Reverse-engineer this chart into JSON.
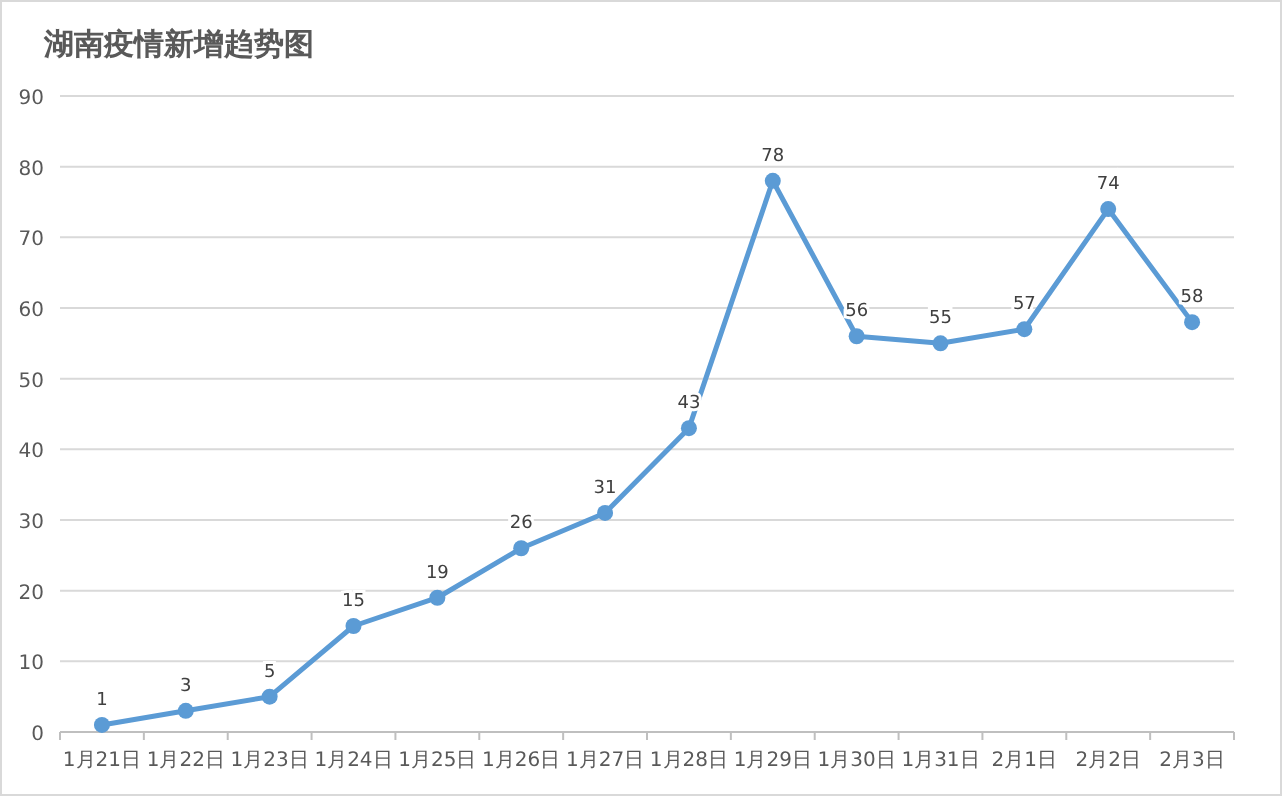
{
  "chart_data": {
    "type": "line",
    "title": "湖南疫情新增趋势图",
    "categories": [
      "1月21日",
      "1月22日",
      "1月23日",
      "1月24日",
      "1月25日",
      "1月26日",
      "1月27日",
      "1月28日",
      "1月29日",
      "1月30日",
      "1月31日",
      "2月1日",
      "2月2日",
      "2月3日"
    ],
    "series": [
      {
        "color": "#5b9bd5",
        "values": [
          1,
          3,
          5,
          15,
          19,
          26,
          31,
          43,
          78,
          56,
          55,
          57,
          74,
          58
        ]
      }
    ],
    "ylim": [
      0,
      90
    ],
    "yticks": [
      0,
      10,
      20,
      30,
      40,
      50,
      60,
      70,
      80,
      90
    ],
    "grid": "y",
    "marker": "circle",
    "line_style": "solid",
    "data_labels": true
  }
}
